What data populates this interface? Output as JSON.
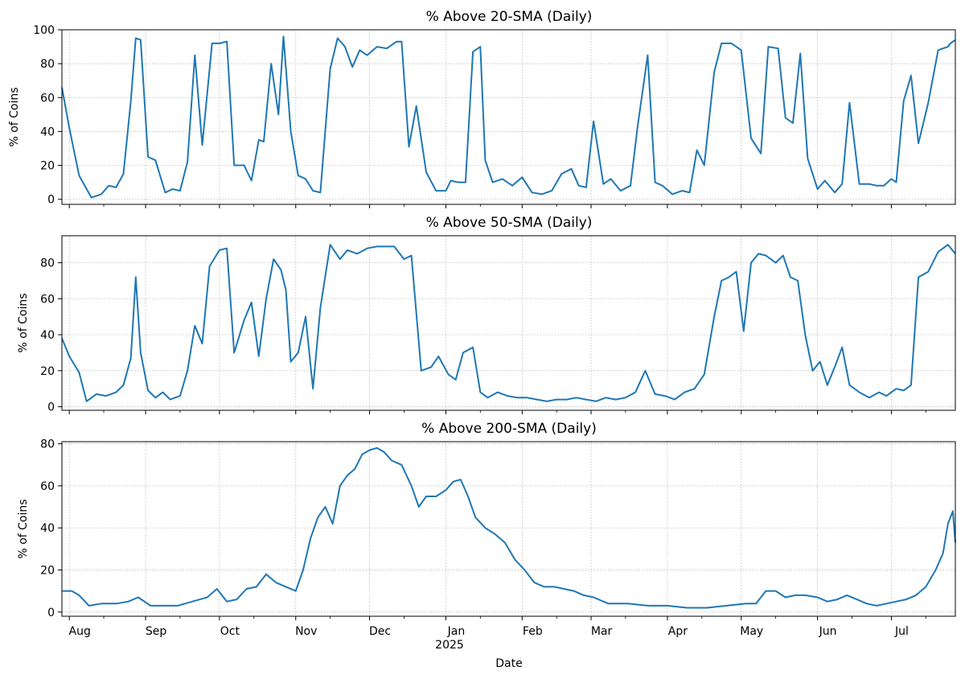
{
  "figure": {
    "xlabel": "Date",
    "year_label": "2025",
    "month_ticks": [
      "Aug",
      "Sep",
      "Oct",
      "Nov",
      "Dec",
      "Jan",
      "Feb",
      "Mar",
      "Apr",
      "May",
      "Jun",
      "Jul"
    ],
    "line_color": "#1f77b4",
    "grid_color": "#b0b0b0"
  },
  "chart_data": [
    {
      "type": "line",
      "title": "% Above 20-SMA (Daily)",
      "ylabel": "% of Coins",
      "xlabel": "",
      "ylim": [
        -3,
        100
      ],
      "yticks": [
        0,
        20,
        40,
        60,
        80,
        100
      ],
      "x_start": "2024-07-29",
      "x_end": "2025-07-27",
      "grid": true,
      "series": [
        {
          "x": [
            "2024-07-29",
            "2024-08-01",
            "2024-08-05",
            "2024-08-10",
            "2024-08-14",
            "2024-08-17",
            "2024-08-20",
            "2024-08-23",
            "2024-08-26",
            "2024-08-28",
            "2024-08-30",
            "2024-09-02",
            "2024-09-05",
            "2024-09-09",
            "2024-09-12",
            "2024-09-15",
            "2024-09-18",
            "2024-09-21",
            "2024-09-24",
            "2024-09-28",
            "2024-10-01",
            "2024-10-04",
            "2024-10-07",
            "2024-10-11",
            "2024-10-14",
            "2024-10-17",
            "2024-10-19",
            "2024-10-22",
            "2024-10-25",
            "2024-10-27",
            "2024-10-30",
            "2024-11-02",
            "2024-11-05",
            "2024-11-08",
            "2024-11-11",
            "2024-11-15",
            "2024-11-18",
            "2024-11-21",
            "2024-11-24",
            "2024-11-27",
            "2024-11-30",
            "2024-12-04",
            "2024-12-08",
            "2024-12-12",
            "2024-12-14",
            "2024-12-17",
            "2024-12-20",
            "2024-12-24",
            "2024-12-28",
            "2025-01-01",
            "2025-01-03",
            "2025-01-06",
            "2025-01-09",
            "2025-01-12",
            "2025-01-15",
            "2025-01-17",
            "2025-01-20",
            "2025-01-24",
            "2025-01-28",
            "2025-02-01",
            "2025-02-05",
            "2025-02-09",
            "2025-02-13",
            "2025-02-17",
            "2025-02-21",
            "2025-02-24",
            "2025-02-27",
            "2025-03-02",
            "2025-03-06",
            "2025-03-09",
            "2025-03-13",
            "2025-03-17",
            "2025-03-20",
            "2025-03-24",
            "2025-03-27",
            "2025-03-30",
            "2025-04-03",
            "2025-04-07",
            "2025-04-10",
            "2025-04-13",
            "2025-04-16",
            "2025-04-20",
            "2025-04-23",
            "2025-04-27",
            "2025-05-01",
            "2025-05-05",
            "2025-05-09",
            "2025-05-12",
            "2025-05-16",
            "2025-05-19",
            "2025-05-22",
            "2025-05-25",
            "2025-05-28",
            "2025-06-01",
            "2025-06-04",
            "2025-06-08",
            "2025-06-11",
            "2025-06-14",
            "2025-06-18",
            "2025-06-22",
            "2025-06-25",
            "2025-06-28",
            "2025-07-01",
            "2025-07-03",
            "2025-07-06",
            "2025-07-09",
            "2025-07-12",
            "2025-07-16",
            "2025-07-20",
            "2025-07-24",
            "2025-07-25",
            "2025-07-27"
          ],
          "y": [
            66,
            42,
            14,
            1,
            3,
            8,
            7,
            15,
            58,
            95,
            94,
            25,
            23,
            4,
            6,
            5,
            22,
            85,
            32,
            92,
            92,
            93,
            20,
            20,
            11,
            35,
            34,
            80,
            50,
            96,
            40,
            14,
            12,
            5,
            4,
            77,
            95,
            90,
            78,
            88,
            85,
            90,
            89,
            93,
            93,
            31,
            55,
            16,
            5,
            5,
            11,
            10,
            10,
            87,
            90,
            23,
            10,
            12,
            8,
            13,
            4,
            3,
            5,
            15,
            18,
            8,
            7,
            46,
            9,
            12,
            5,
            8,
            44,
            85,
            10,
            8,
            3,
            5,
            4,
            29,
            20,
            75,
            92,
            92,
            88,
            36,
            27,
            90,
            89,
            48,
            45,
            86,
            24,
            6,
            11,
            4,
            9,
            57,
            9,
            9,
            8,
            8,
            12,
            10,
            58,
            73,
            33,
            57,
            88,
            90,
            92,
            94
          ],
          "note_points_are_approximate": true
        }
      ]
    },
    {
      "type": "line",
      "title": "% Above 50-SMA (Daily)",
      "ylabel": "% of Coins",
      "xlabel": "",
      "ylim": [
        -2,
        95
      ],
      "yticks": [
        0,
        20,
        40,
        60,
        80
      ],
      "x_start": "2024-07-29",
      "x_end": "2025-07-27",
      "grid": true,
      "series": [
        {
          "x": [
            "2024-07-29",
            "2024-08-01",
            "2024-08-05",
            "2024-08-08",
            "2024-08-12",
            "2024-08-16",
            "2024-08-20",
            "2024-08-23",
            "2024-08-26",
            "2024-08-28",
            "2024-08-30",
            "2024-09-02",
            "2024-09-05",
            "2024-09-08",
            "2024-09-11",
            "2024-09-15",
            "2024-09-18",
            "2024-09-21",
            "2024-09-24",
            "2024-09-27",
            "2024-10-01",
            "2024-10-04",
            "2024-10-07",
            "2024-10-11",
            "2024-10-14",
            "2024-10-17",
            "2024-10-20",
            "2024-10-23",
            "2024-10-26",
            "2024-10-28",
            "2024-10-30",
            "2024-11-02",
            "2024-11-05",
            "2024-11-08",
            "2024-11-11",
            "2024-11-15",
            "2024-11-19",
            "2024-11-22",
            "2024-11-26",
            "2024-11-30",
            "2024-12-04",
            "2024-12-08",
            "2024-12-11",
            "2024-12-15",
            "2024-12-18",
            "2024-12-22",
            "2024-12-26",
            "2024-12-29",
            "2025-01-02",
            "2025-01-05",
            "2025-01-08",
            "2025-01-12",
            "2025-01-15",
            "2025-01-18",
            "2025-01-22",
            "2025-01-26",
            "2025-01-30",
            "2025-02-03",
            "2025-02-07",
            "2025-02-11",
            "2025-02-15",
            "2025-02-19",
            "2025-02-23",
            "2025-02-27",
            "2025-03-03",
            "2025-03-07",
            "2025-03-11",
            "2025-03-15",
            "2025-03-19",
            "2025-03-23",
            "2025-03-27",
            "2025-03-31",
            "2025-04-04",
            "2025-04-08",
            "2025-04-12",
            "2025-04-16",
            "2025-04-20",
            "2025-04-23",
            "2025-04-26",
            "2025-04-29",
            "2025-05-02",
            "2025-05-05",
            "2025-05-08",
            "2025-05-11",
            "2025-05-15",
            "2025-05-18",
            "2025-05-21",
            "2025-05-24",
            "2025-05-27",
            "2025-05-30",
            "2025-06-02",
            "2025-06-05",
            "2025-06-08",
            "2025-06-11",
            "2025-06-14",
            "2025-06-18",
            "2025-06-22",
            "2025-06-26",
            "2025-06-29",
            "2025-07-03",
            "2025-07-06",
            "2025-07-09",
            "2025-07-12",
            "2025-07-16",
            "2025-07-20",
            "2025-07-24",
            "2025-07-27"
          ],
          "y": [
            38,
            28,
            19,
            3,
            7,
            6,
            8,
            12,
            27,
            72,
            30,
            9,
            5,
            8,
            4,
            6,
            20,
            45,
            35,
            78,
            87,
            88,
            30,
            48,
            58,
            28,
            60,
            82,
            76,
            65,
            25,
            30,
            50,
            10,
            55,
            90,
            82,
            87,
            85,
            88,
            89,
            89,
            89,
            82,
            84,
            20,
            22,
            28,
            18,
            15,
            30,
            33,
            8,
            5,
            8,
            6,
            5,
            5,
            4,
            3,
            4,
            4,
            5,
            4,
            3,
            5,
            4,
            5,
            8,
            20,
            7,
            6,
            4,
            8,
            10,
            18,
            50,
            70,
            72,
            75,
            42,
            80,
            85,
            84,
            80,
            84,
            72,
            70,
            40,
            20,
            25,
            12,
            22,
            33,
            12,
            8,
            5,
            8,
            6,
            10,
            9,
            12,
            72,
            75,
            86,
            90,
            85
          ],
          "note_points_are_approximate": true
        }
      ]
    },
    {
      "type": "line",
      "title": "% Above 200-SMA (Daily)",
      "ylabel": "% of Coins",
      "xlabel": "Date",
      "ylim": [
        -2,
        81
      ],
      "yticks": [
        0,
        20,
        40,
        60,
        80
      ],
      "x_start": "2024-07-29",
      "x_end": "2025-07-27",
      "grid": true,
      "series": [
        {
          "x": [
            "2024-07-29",
            "2024-08-02",
            "2024-08-05",
            "2024-08-09",
            "2024-08-14",
            "2024-08-20",
            "2024-08-25",
            "2024-08-29",
            "2024-09-03",
            "2024-09-08",
            "2024-09-14",
            "2024-09-20",
            "2024-09-26",
            "2024-09-30",
            "2024-10-04",
            "2024-10-08",
            "2024-10-12",
            "2024-10-16",
            "2024-10-20",
            "2024-10-24",
            "2024-10-28",
            "2024-11-01",
            "2024-11-04",
            "2024-11-07",
            "2024-11-10",
            "2024-11-13",
            "2024-11-16",
            "2024-11-19",
            "2024-11-22",
            "2024-11-25",
            "2024-11-28",
            "2024-12-01",
            "2024-12-04",
            "2024-12-07",
            "2024-12-10",
            "2024-12-14",
            "2024-12-18",
            "2024-12-21",
            "2024-12-24",
            "2024-12-28",
            "2025-01-01",
            "2025-01-04",
            "2025-01-07",
            "2025-01-10",
            "2025-01-13",
            "2025-01-17",
            "2025-01-21",
            "2025-01-25",
            "2025-01-29",
            "2025-02-02",
            "2025-02-06",
            "2025-02-10",
            "2025-02-14",
            "2025-02-18",
            "2025-02-22",
            "2025-02-26",
            "2025-03-02",
            "2025-03-08",
            "2025-03-16",
            "2025-03-24",
            "2025-04-01",
            "2025-04-09",
            "2025-04-17",
            "2025-04-25",
            "2025-05-03",
            "2025-05-07",
            "2025-05-11",
            "2025-05-15",
            "2025-05-19",
            "2025-05-23",
            "2025-05-27",
            "2025-06-01",
            "2025-06-05",
            "2025-06-09",
            "2025-06-13",
            "2025-06-17",
            "2025-06-21",
            "2025-06-25",
            "2025-06-29",
            "2025-07-03",
            "2025-07-07",
            "2025-07-11",
            "2025-07-15",
            "2025-07-19",
            "2025-07-22",
            "2025-07-24",
            "2025-07-26",
            "2025-07-27"
          ],
          "y": [
            10,
            10,
            8,
            3,
            4,
            4,
            5,
            7,
            3,
            3,
            3,
            5,
            7,
            11,
            5,
            6,
            11,
            12,
            18,
            14,
            12,
            10,
            20,
            35,
            45,
            50,
            42,
            60,
            65,
            68,
            75,
            77,
            78,
            76,
            72,
            70,
            60,
            50,
            55,
            55,
            58,
            62,
            63,
            55,
            45,
            40,
            37,
            33,
            25,
            20,
            14,
            12,
            12,
            11,
            10,
            8,
            7,
            4,
            4,
            3,
            3,
            2,
            2,
            3,
            4,
            4,
            10,
            10,
            7,
            8,
            8,
            7,
            5,
            6,
            8,
            6,
            4,
            3,
            4,
            5,
            6,
            8,
            12,
            20,
            28,
            42,
            48,
            33
          ],
          "note_points_are_approximate": true
        }
      ]
    }
  ]
}
